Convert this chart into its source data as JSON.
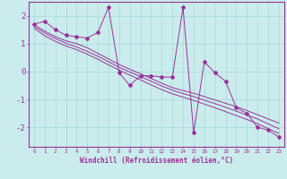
{
  "xlabel": "Windchill (Refroidissement éolien,°C)",
  "x_data": [
    0,
    1,
    2,
    3,
    4,
    5,
    6,
    7,
    8,
    9,
    10,
    11,
    12,
    13,
    14,
    15,
    16,
    17,
    18,
    19,
    20,
    21,
    22,
    23
  ],
  "y_main": [
    1.7,
    1.8,
    1.5,
    1.3,
    1.25,
    1.2,
    1.4,
    2.3,
    -0.05,
    -0.5,
    -0.15,
    -0.15,
    -0.2,
    -0.2,
    2.3,
    -2.2,
    0.35,
    -0.05,
    -0.35,
    -1.3,
    -1.5,
    -2.0,
    -2.1,
    -2.35
  ],
  "y_reg1": [
    1.68,
    1.45,
    1.25,
    1.1,
    1.0,
    0.85,
    0.65,
    0.45,
    0.25,
    0.08,
    -0.08,
    -0.25,
    -0.42,
    -0.58,
    -0.68,
    -0.78,
    -0.9,
    -1.02,
    -1.14,
    -1.26,
    -1.4,
    -1.55,
    -1.7,
    -1.85
  ],
  "y_reg2": [
    1.62,
    1.38,
    1.18,
    1.02,
    0.88,
    0.72,
    0.55,
    0.35,
    0.15,
    -0.02,
    -0.18,
    -0.35,
    -0.52,
    -0.67,
    -0.79,
    -0.9,
    -1.03,
    -1.15,
    -1.28,
    -1.42,
    -1.56,
    -1.7,
    -1.88,
    -2.05
  ],
  "y_reg3": [
    1.55,
    1.28,
    1.08,
    0.92,
    0.78,
    0.62,
    0.44,
    0.24,
    0.05,
    -0.13,
    -0.3,
    -0.48,
    -0.65,
    -0.8,
    -0.92,
    -1.04,
    -1.17,
    -1.3,
    -1.44,
    -1.58,
    -1.72,
    -1.87,
    -2.05,
    -2.22
  ],
  "line_color": "#993399",
  "bg_color": "#cbecec",
  "grid_color": "#a8d8d8",
  "ylim": [
    -2.7,
    2.5
  ],
  "yticks": [
    -2,
    -1,
    0,
    1,
    2
  ],
  "xlim": [
    -0.5,
    23.5
  ]
}
